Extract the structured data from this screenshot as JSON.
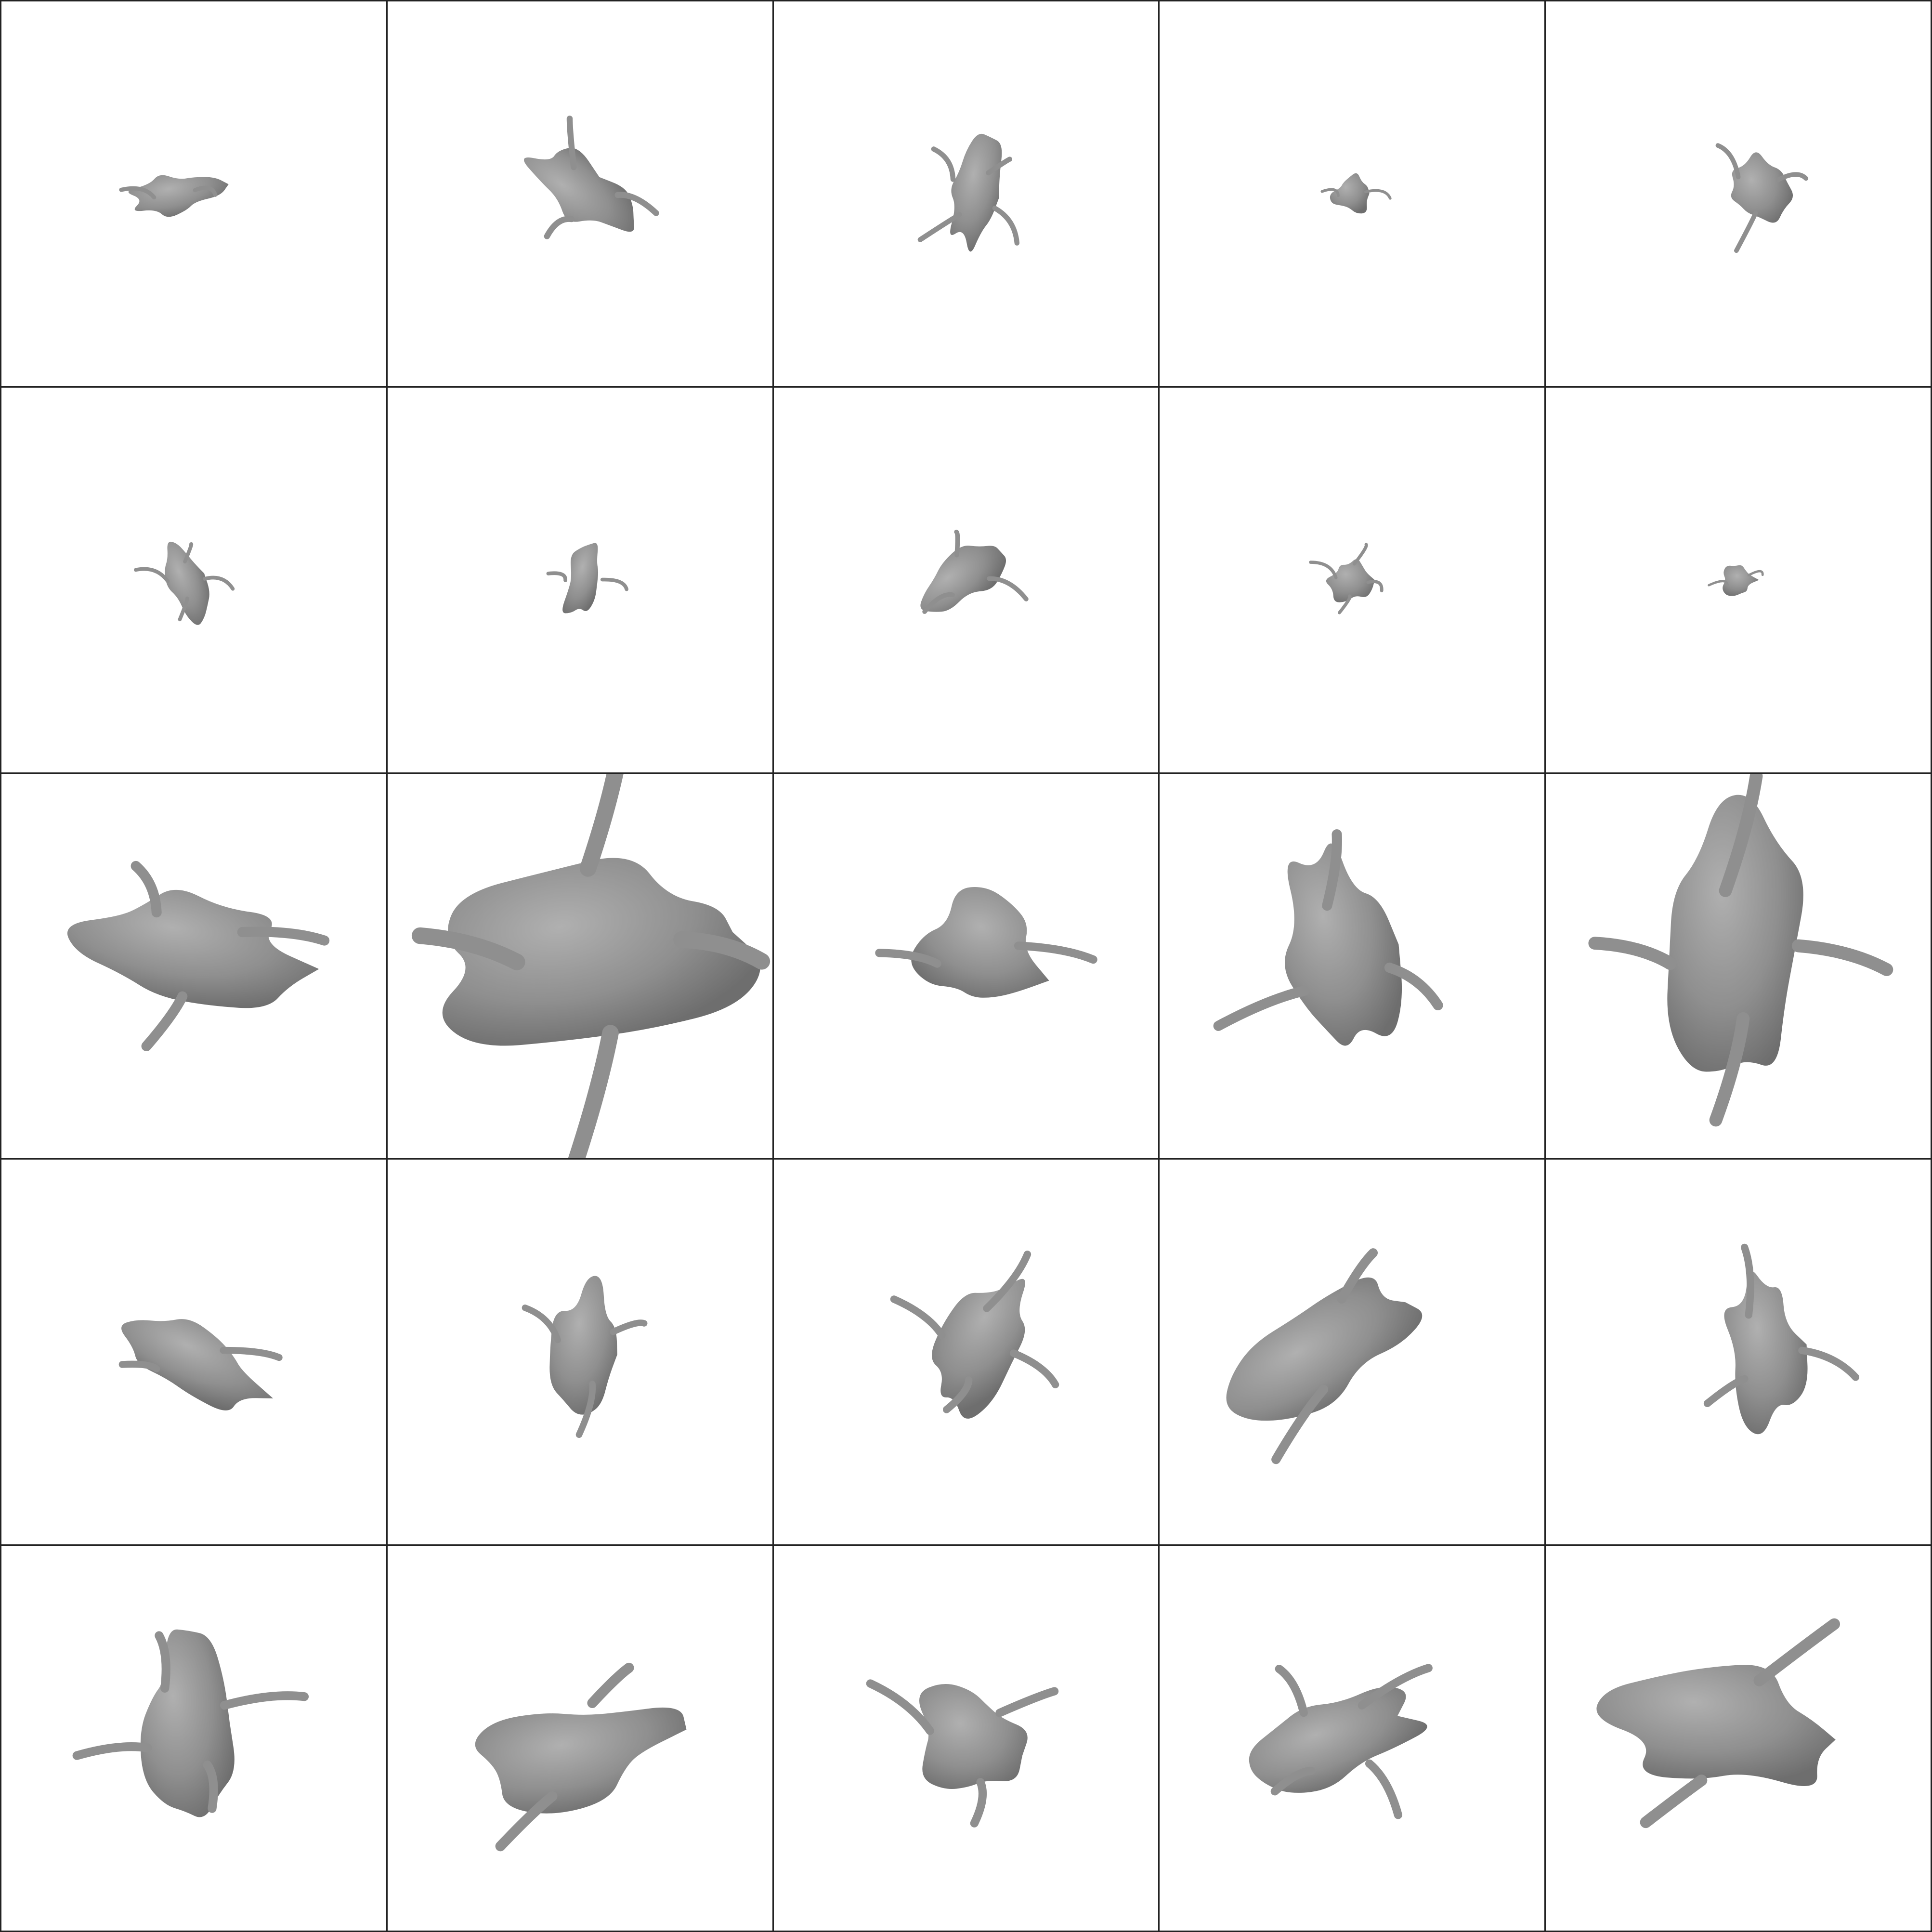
{
  "grid": {
    "rows": 5,
    "cols": 5,
    "background": "#ffffff",
    "line_color": "#222222",
    "shape_color": "#8f8f8f"
  },
  "cells": [
    {
      "row": 1,
      "col": 1,
      "subject": "gray-3d-shape"
    },
    {
      "row": 1,
      "col": 2,
      "subject": "gray-3d-shape"
    },
    {
      "row": 1,
      "col": 3,
      "subject": "gray-3d-shape"
    },
    {
      "row": 1,
      "col": 4,
      "subject": "gray-3d-shape"
    },
    {
      "row": 1,
      "col": 5,
      "subject": "gray-3d-shape"
    },
    {
      "row": 2,
      "col": 1,
      "subject": "gray-3d-shape"
    },
    {
      "row": 2,
      "col": 2,
      "subject": "gray-3d-shape"
    },
    {
      "row": 2,
      "col": 3,
      "subject": "gray-3d-shape"
    },
    {
      "row": 2,
      "col": 4,
      "subject": "gray-3d-shape"
    },
    {
      "row": 2,
      "col": 5,
      "subject": "gray-3d-shape"
    },
    {
      "row": 3,
      "col": 1,
      "subject": "gray-3d-shape"
    },
    {
      "row": 3,
      "col": 2,
      "subject": "gray-3d-shape"
    },
    {
      "row": 3,
      "col": 3,
      "subject": "gray-3d-shape"
    },
    {
      "row": 3,
      "col": 4,
      "subject": "gray-3d-shape"
    },
    {
      "row": 3,
      "col": 5,
      "subject": "gray-3d-shape"
    },
    {
      "row": 4,
      "col": 1,
      "subject": "gray-3d-shape"
    },
    {
      "row": 4,
      "col": 2,
      "subject": "gray-3d-shape"
    },
    {
      "row": 4,
      "col": 3,
      "subject": "gray-3d-shape"
    },
    {
      "row": 4,
      "col": 4,
      "subject": "gray-3d-shape"
    },
    {
      "row": 4,
      "col": 5,
      "subject": "gray-3d-shape"
    },
    {
      "row": 5,
      "col": 1,
      "subject": "gray-3d-shape"
    },
    {
      "row": 5,
      "col": 2,
      "subject": "gray-3d-shape"
    },
    {
      "row": 5,
      "col": 3,
      "subject": "gray-3d-shape"
    },
    {
      "row": 5,
      "col": 4,
      "subject": "gray-3d-shape"
    },
    {
      "row": 5,
      "col": 5,
      "subject": "gray-3d-shape"
    }
  ]
}
